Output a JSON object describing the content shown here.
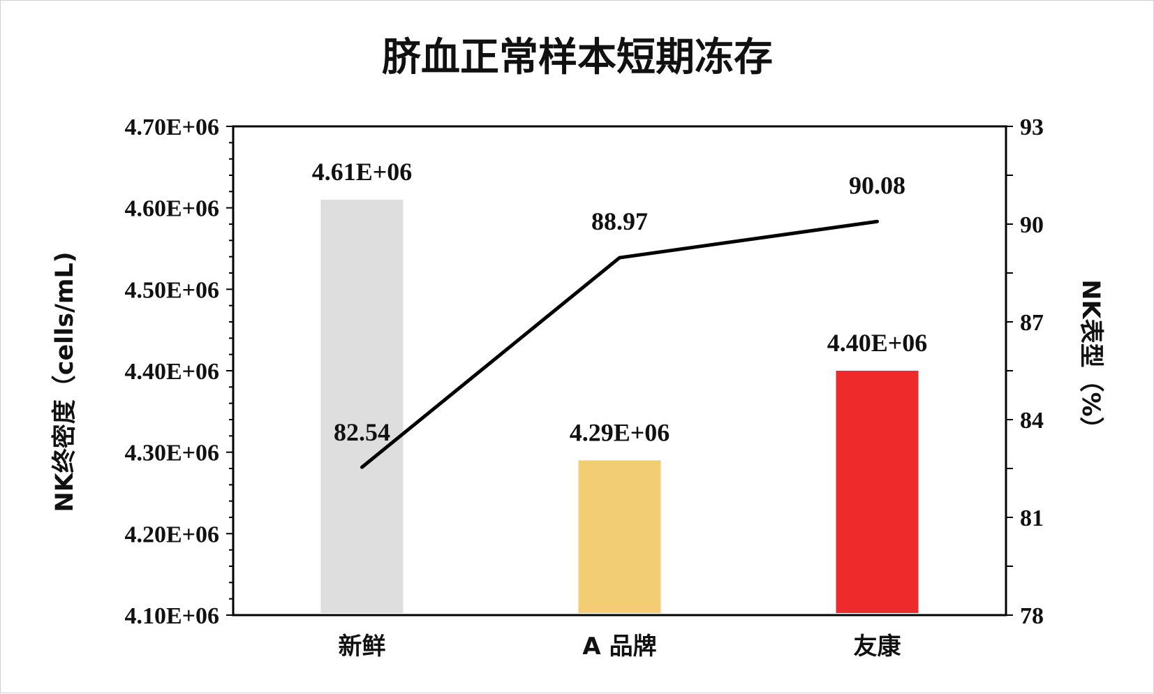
{
  "chart_data": {
    "type": "bar",
    "title": "脐血正常样本短期冻存",
    "categories": [
      "新鲜",
      "A 品牌",
      "友康"
    ],
    "y_left": {
      "label": "NK终密度（cells/mL)",
      "range": [
        4100000,
        4700000
      ],
      "ticks": [
        4100000,
        4200000,
        4300000,
        4400000,
        4500000,
        4600000,
        4700000
      ],
      "tick_labels": [
        "4.10E+06",
        "4.20E+06",
        "4.30E+06",
        "4.40E+06",
        "4.50E+06",
        "4.60E+06",
        "4.70E+06"
      ]
    },
    "y_right": {
      "label": "NK表型（%）",
      "range": [
        78,
        93
      ],
      "ticks": [
        78,
        81,
        84,
        87,
        90,
        93
      ],
      "tick_labels": [
        "78",
        "81",
        "84",
        "87",
        "90",
        "93"
      ]
    },
    "series": [
      {
        "type": "bar",
        "axis": "left",
        "values": [
          4610000,
          4290000,
          4400000
        ],
        "labels": [
          "4.61E+06",
          "4.29E+06",
          "4.40E+06"
        ],
        "colors": [
          "#dedede",
          "#f3cd73",
          "#ee2a2a"
        ]
      },
      {
        "type": "line",
        "axis": "right",
        "values": [
          82.54,
          88.97,
          90.08
        ],
        "labels": [
          "82.54",
          "88.97",
          "90.08"
        ],
        "color": "#000000"
      }
    ],
    "grid": false,
    "legend": "none"
  }
}
